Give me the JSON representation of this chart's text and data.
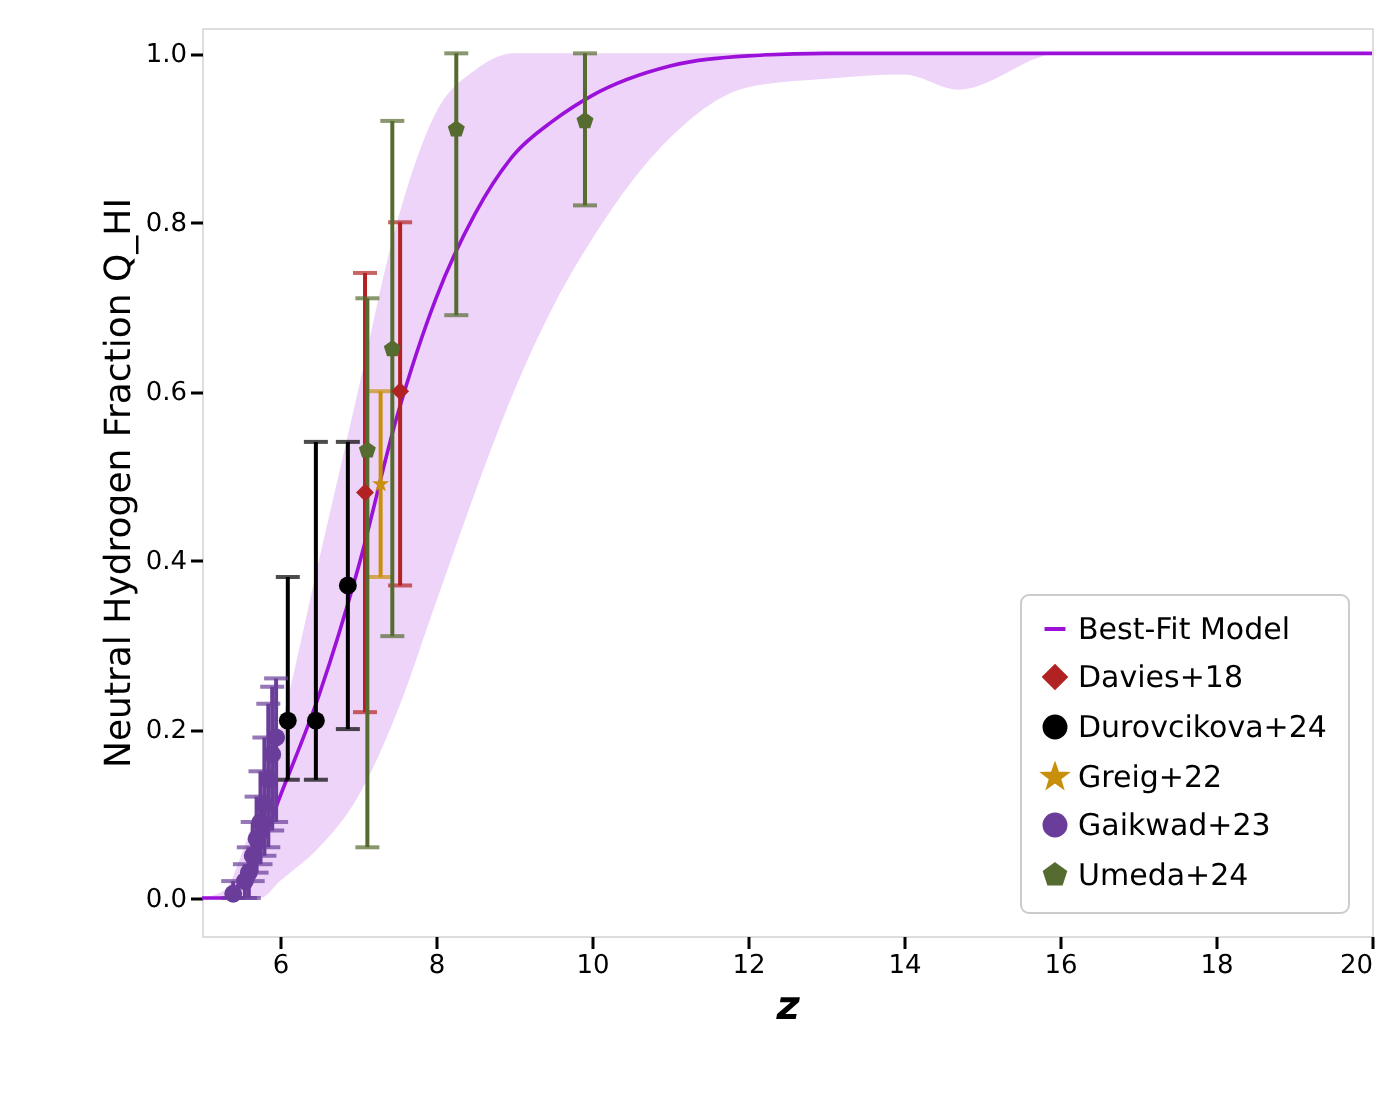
{
  "chart_data": {
    "type": "line",
    "xlabel": "z",
    "ylabel": "Neutral Hydrogen Fraction Q_HI",
    "xlim": [
      5,
      20
    ],
    "xticks": [
      6,
      8,
      10,
      12,
      14,
      16,
      18,
      20
    ],
    "ylim": [
      -0.045,
      1.03
    ],
    "yticks": [
      {
        "value": 0,
        "label": "0.0"
      },
      {
        "value": 0.2,
        "label": "0.2"
      },
      {
        "value": 0.4,
        "label": "0.4"
      },
      {
        "value": 0.6,
        "label": "0.6"
      },
      {
        "value": 0.8,
        "label": "0.8"
      },
      {
        "value": 1,
        "label": "1.0"
      }
    ],
    "legend": "bottom right",
    "grid": false,
    "series": [
      {
        "name": "Best-Fit Model",
        "color": "#9b11d9",
        "line_style": "solid",
        "marker": "none",
        "x": [
          5,
          5.3,
          5.5,
          5.75,
          6,
          6.5,
          7,
          7.5,
          8,
          8.5,
          9,
          9.5,
          10,
          11,
          12,
          13,
          14,
          14.7,
          16,
          20
        ],
        "values": [
          0,
          0,
          0.02,
          0.06,
          0.12,
          0.24,
          0.39,
          0.57,
          0.71,
          0.81,
          0.88,
          0.92,
          0.95,
          0.985,
          0.997,
          1,
          1,
          1,
          1,
          1
        ],
        "lower": [
          0,
          0,
          0,
          0,
          0.02,
          0.06,
          0.12,
          0.22,
          0.35,
          0.48,
          0.6,
          0.7,
          0.78,
          0.9,
          0.96,
          0.97,
          0.975,
          0.957,
          1,
          1
        ],
        "upper": [
          0,
          0.01,
          0.05,
          0.12,
          0.2,
          0.4,
          0.6,
          0.8,
          0.93,
          0.98,
          1,
          1,
          1,
          1,
          1,
          1,
          1,
          1,
          1,
          1
        ]
      },
      {
        "name": "Davies+18",
        "type": "scatter",
        "color": "#b22222",
        "marker": "diamond",
        "x": [
          7.09,
          7.54
        ],
        "values": [
          0.48,
          0.6
        ],
        "errors": [
          [
            0.22,
            0.74
          ],
          [
            0.37,
            0.8
          ]
        ]
      },
      {
        "name": "Durovcikova+24",
        "type": "scatter",
        "color": "#000000",
        "marker": "circle",
        "x": [
          6.1,
          6.46,
          6.87
        ],
        "values": [
          0.21,
          0.21,
          0.37
        ],
        "errors": [
          [
            0.14,
            0.38
          ],
          [
            0.14,
            0.54
          ],
          [
            0.2,
            0.54
          ]
        ]
      },
      {
        "name": "Greig+22",
        "type": "scatter",
        "color": "#c8900a",
        "marker": "star",
        "x": [
          7.29
        ],
        "values": [
          0.49
        ],
        "errors": [
          [
            0.38,
            0.6
          ]
        ]
      },
      {
        "name": "Gaikwad+23",
        "type": "scatter",
        "color": "#6a3d9a",
        "marker": "circle",
        "x": [
          5.4,
          5.55,
          5.6,
          5.65,
          5.7,
          5.75,
          5.8,
          5.85,
          5.9,
          5.95
        ],
        "values": [
          0.005,
          0.02,
          0.03,
          0.05,
          0.07,
          0.09,
          0.11,
          0.14,
          0.17,
          0.19
        ],
        "errors": [
          [
            0,
            0.02
          ],
          [
            0,
            0.04
          ],
          [
            0,
            0.06
          ],
          [
            0.02,
            0.09
          ],
          [
            0.03,
            0.12
          ],
          [
            0.04,
            0.15
          ],
          [
            0.05,
            0.19
          ],
          [
            0.06,
            0.23
          ],
          [
            0.08,
            0.25
          ],
          [
            0.09,
            0.26
          ]
        ]
      },
      {
        "name": "Umeda+24",
        "type": "scatter",
        "color": "#556b2f",
        "x": [
          7.12,
          7.44,
          8.26,
          9.91
        ],
        "values": [
          0.53,
          0.65,
          0.91,
          0.92
        ],
        "errors": [
          [
            0.06,
            0.71
          ],
          [
            0.31,
            0.92
          ],
          [
            0.69,
            1.0
          ],
          [
            0.82,
            1.0
          ]
        ]
      }
    ]
  }
}
